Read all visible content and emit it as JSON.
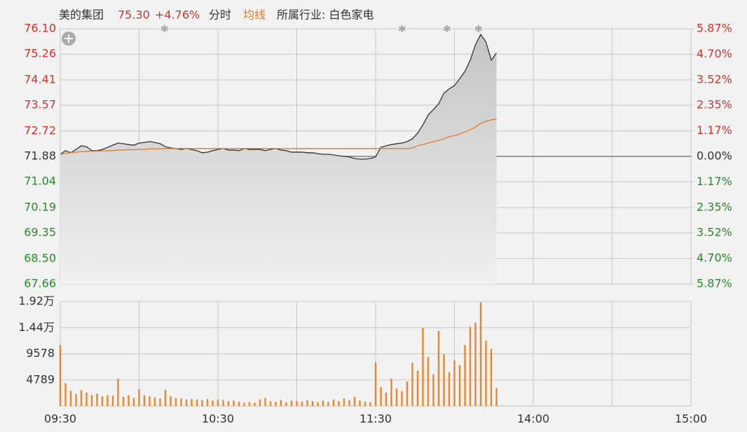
{
  "chart_data": [
    {
      "type": "line",
      "title": "美的集团",
      "price_label": "75.30",
      "change_label": "+4.76%",
      "mode": "分时",
      "industry": "所属行业: 白色家电",
      "ylim": [
        67.66,
        76.1
      ],
      "yticks": [
        {
          "value": 76.1,
          "label": "76.10"
        },
        75.26,
        74.41,
        73.57,
        72.72,
        71.88,
        71.04,
        70.19,
        69.35,
        {
          "value": 68.5,
          "label": "68.50"
        },
        67.66
      ],
      "y2lim": [
        -5.87,
        5.87
      ],
      "y2ticks": [
        {
          "value": 5.87,
          "label": "5.87%"
        },
        {
          "value": 4.7,
          "label": "4.70%"
        },
        {
          "value": 3.52,
          "label": "3.52%"
        },
        {
          "value": 2.35,
          "label": "2.35%"
        },
        {
          "value": 1.17,
          "label": "1.17%"
        },
        {
          "value": 0,
          "label": "0.00%"
        },
        {
          "value": -1.17,
          "label": "1.17%"
        },
        {
          "value": -2.35,
          "label": "2.35%"
        },
        {
          "value": -3.52,
          "label": "3.52%"
        },
        {
          "value": -4.7,
          "label": "4.70%"
        },
        {
          "value": -5.87,
          "label": "5.87%"
        }
      ],
      "up_color": "#d8312c",
      "down_color": "#2a8a2a",
      "flat_color": "#333333",
      "grid": true,
      "series": [
        {
          "color": "#333333",
          "values": [
            71.95,
            72.07,
            72.0,
            72.11,
            72.23,
            72.2,
            72.07,
            72.07,
            72.11,
            72.18,
            72.25,
            72.32,
            72.3,
            72.27,
            72.25,
            72.32,
            72.34,
            72.37,
            72.34,
            72.3,
            72.2,
            72.16,
            72.14,
            72.11,
            72.14,
            72.11,
            72.07,
            72.0,
            72.02,
            72.07,
            72.11,
            72.14,
            72.09,
            72.09,
            72.07,
            72.14,
            72.11,
            72.11,
            72.11,
            72.07,
            72.11,
            72.14,
            72.09,
            72.07,
            72.02,
            72.02,
            72.02,
            72.0,
            72.0,
            71.97,
            71.95,
            71.95,
            71.93,
            71.9,
            71.88,
            71.86,
            71.81,
            71.79,
            71.79,
            71.81,
            71.86,
            72.18,
            72.23,
            72.27,
            72.3,
            72.32,
            72.37,
            72.46,
            72.65,
            72.92,
            73.25,
            73.43,
            73.62,
            73.97,
            74.11,
            74.22,
            74.45,
            74.69,
            75.06,
            75.57,
            75.91,
            75.66,
            75.06,
            75.3,
            null,
            null,
            null,
            null,
            null,
            null,
            null,
            null,
            null,
            null,
            null,
            null,
            null,
            null,
            null,
            null,
            null,
            null,
            null,
            null,
            null,
            null,
            null,
            null,
            null,
            null,
            null,
            null,
            null,
            null,
            null,
            null,
            null,
            null,
            null,
            null,
            null
          ]
        },
        {
          "name": "均线",
          "color": "#e07b2a",
          "values": [
            71.95,
            71.98,
            72.0,
            72.02,
            72.04,
            72.05,
            72.05,
            72.06,
            72.06,
            72.07,
            72.07,
            72.09,
            72.09,
            72.1,
            72.1,
            72.11,
            72.11,
            72.13,
            72.13,
            72.13,
            72.14,
            72.14,
            72.14,
            72.14,
            72.14,
            72.14,
            72.14,
            72.14,
            72.14,
            72.14,
            72.14,
            72.14,
            72.14,
            72.14,
            72.14,
            72.14,
            72.14,
            72.14,
            72.14,
            72.14,
            72.14,
            72.14,
            72.14,
            72.14,
            72.14,
            72.14,
            72.14,
            72.14,
            72.14,
            72.14,
            72.14,
            72.14,
            72.14,
            72.14,
            72.14,
            72.14,
            72.14,
            72.14,
            72.14,
            72.14,
            72.14,
            72.14,
            72.14,
            72.14,
            72.14,
            72.14,
            72.14,
            72.16,
            72.23,
            72.27,
            72.32,
            72.37,
            72.41,
            72.46,
            72.53,
            72.57,
            72.62,
            72.69,
            72.76,
            72.85,
            72.97,
            73.04,
            73.09,
            73.11,
            null,
            null,
            null,
            null,
            null,
            null,
            null,
            null,
            null,
            null,
            null,
            null,
            null,
            null,
            null,
            null,
            null,
            null,
            null,
            null,
            null,
            null,
            null,
            null,
            null,
            null,
            null,
            null,
            null,
            null,
            null,
            null,
            null,
            null,
            null,
            null,
            null
          ]
        }
      ]
    },
    {
      "type": "bar",
      "categories": [
        "09:30",
        null,
        null,
        null,
        null,
        null,
        null,
        null,
        null,
        null,
        null,
        null,
        null,
        null,
        null,
        null,
        null,
        null,
        null,
        null,
        null,
        null,
        null,
        null,
        null,
        null,
        null,
        null,
        null,
        null,
        "10:30",
        null,
        null,
        null,
        null,
        null,
        null,
        null,
        null,
        null,
        null,
        null,
        null,
        null,
        null,
        null,
        null,
        null,
        null,
        null,
        null,
        null,
        null,
        null,
        null,
        null,
        null,
        null,
        null,
        null,
        "11:30",
        null,
        null,
        null,
        null,
        null,
        null,
        null,
        null,
        null,
        null,
        null,
        null,
        null,
        null,
        null,
        null,
        null,
        null,
        null,
        null,
        null,
        null,
        null,
        null,
        null,
        null,
        null,
        null,
        null,
        "14:00",
        null,
        null,
        null,
        null,
        null,
        null,
        null,
        null,
        null,
        null,
        null,
        null,
        null,
        null,
        null,
        null,
        null,
        null,
        null,
        null,
        null,
        null,
        null,
        null,
        null,
        null,
        null,
        null,
        null,
        "15:00"
      ],
      "values": [
        11200,
        4200,
        2800,
        2200,
        2900,
        2500,
        2000,
        2300,
        1800,
        2000,
        1900,
        5000,
        1700,
        2000,
        1500,
        3100,
        2000,
        1800,
        1600,
        1400,
        3000,
        1800,
        1500,
        1400,
        1200,
        1300,
        1200,
        1100,
        1300,
        1000,
        1200,
        1100,
        900,
        1000,
        800,
        600,
        700,
        600,
        1200,
        1500,
        900,
        800,
        1100,
        700,
        1000,
        900,
        800,
        1100,
        900,
        700,
        1000,
        800,
        1200,
        900,
        1400,
        1100,
        1700,
        1000,
        800,
        700,
        8000,
        3500,
        2500,
        5000,
        3200,
        2700,
        4500,
        8000,
        6500,
        14300,
        9000,
        5800,
        13800,
        9500,
        6200,
        8400,
        7500,
        11200,
        14500,
        15300,
        19000,
        12000,
        10500,
        3300,
        null,
        null,
        null,
        null,
        null,
        null,
        null,
        null,
        null,
        null,
        null,
        null,
        null,
        null,
        null,
        null,
        null,
        null,
        null,
        null,
        null,
        null,
        null,
        null,
        null,
        null,
        null,
        null,
        null,
        null,
        null,
        null,
        null,
        null,
        null,
        null,
        null
      ],
      "color": "#e8862f",
      "ylim": [
        0,
        19156
      ],
      "yticks": [
        {
          "value": 19156,
          "label": "1.92万"
        },
        {
          "value": 14367,
          "label": "1.44万"
        },
        9578,
        4789
      ],
      "grid": true
    }
  ]
}
